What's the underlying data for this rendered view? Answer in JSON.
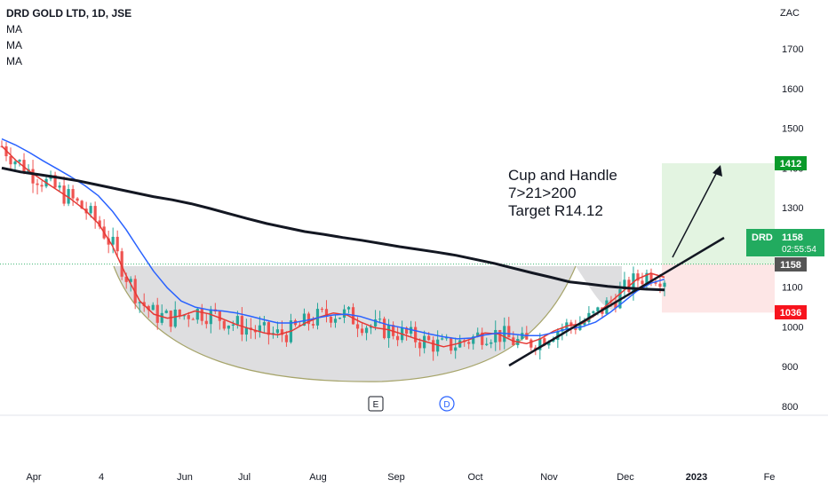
{
  "legend": {
    "title": "DRD GOLD LTD, 1D, JSE",
    "ma1": "MA",
    "ma2": "MA",
    "ma3": "MA"
  },
  "annotation": {
    "line1": "Cup and Handle",
    "line2": "7>21>200",
    "line3": "Target R14.12"
  },
  "markers": {
    "earnings": "E",
    "dividend": "D"
  },
  "price_tags": {
    "target": "1412",
    "symbol": "DRD",
    "last": "1158",
    "countdown": "02:55:54",
    "level": "1158",
    "stop": "1036"
  },
  "colors": {
    "up": "#26a69a",
    "down": "#ef5350",
    "ma_fast": "#e53935",
    "ma_mid": "#2962ff",
    "ma_slow": "#131722",
    "target_zone": "#e3f4e1",
    "stop_zone": "#fde6e6",
    "target_tag": "#0a9a2a",
    "stop_tag": "#f7131d",
    "last_tag": "#22ab5f",
    "level_tag": "#555555",
    "cup_fill": "#d8d8db",
    "cup_edge": "#a6a46a"
  },
  "chart_data": {
    "type": "candlestick",
    "title": "DRD GOLD LTD, 1D, JSE",
    "currency": "ZAC",
    "y_ticks": [
      800,
      900,
      1000,
      1100,
      1200,
      1300,
      1400,
      1500,
      1600,
      1700
    ],
    "ylim": [
      790,
      1780
    ],
    "x_ticks": [
      "Apr",
      "4",
      "Jun",
      "Jul",
      "Aug",
      "Sep",
      "Oct",
      "Nov",
      "Dec",
      "2023",
      "Fe"
    ],
    "series": [
      {
        "name": "MA",
        "key": "fast",
        "values": [
          1455,
          1420,
          1392,
          1368,
          1345,
          1322,
          1295,
          1260,
          1205,
          1130,
          1065,
          1032,
          1022,
          1028,
          1040,
          1033,
          1020,
          1006,
          995,
          985,
          980,
          990,
          1010,
          1025,
          1035,
          1030,
          1012,
          998,
          993,
          982,
          970,
          960,
          950,
          958,
          970,
          985,
          982,
          965,
          958,
          970,
          990,
          1003,
          1008,
          1030,
          1060,
          1090,
          1120,
          1135,
          1125
        ]
      },
      {
        "name": "MA",
        "key": "mid",
        "values": [
          1473,
          1458,
          1439,
          1418,
          1398,
          1378,
          1356,
          1330,
          1292,
          1245,
          1192,
          1140,
          1098,
          1065,
          1050,
          1043,
          1040,
          1035,
          1027,
          1018,
          1010,
          1010,
          1016,
          1024,
          1030,
          1032,
          1026,
          1015,
          1005,
          998,
          990,
          982,
          975,
          970,
          972,
          980,
          985,
          982,
          978,
          978,
          986,
          995,
          1000,
          1012,
          1035,
          1062,
          1090,
          1110,
          1120
        ]
      },
      {
        "name": "MA",
        "key": "slow",
        "values": [
          1400,
          1390,
          1383,
          1376,
          1368,
          1358,
          1348,
          1338,
          1328,
          1320,
          1310,
          1298,
          1285,
          1272,
          1260,
          1250,
          1240,
          1233,
          1225,
          1218,
          1210,
          1202,
          1195,
          1188,
          1180,
          1170,
          1160,
          1148,
          1136,
          1125,
          1113,
          1108,
          1102,
          1098,
          1095,
          1093
        ]
      }
    ],
    "annotations": [
      "Cup and Handle",
      "7>21>200",
      "Target R14.12"
    ],
    "target": 1412,
    "last_price": 1158,
    "stop": 1036,
    "entry": 1158,
    "grid": false
  }
}
